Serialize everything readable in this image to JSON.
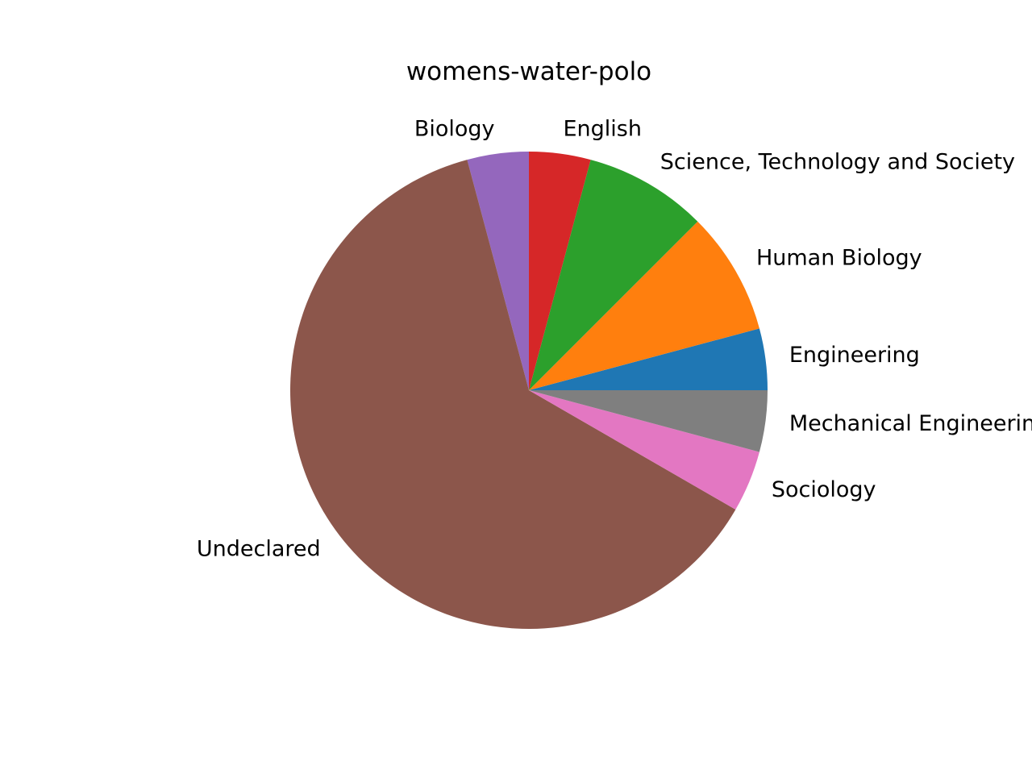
{
  "chart_data": {
    "type": "pie",
    "title": "womens-water-polo",
    "start_angle": 0,
    "direction": "counterclockwise",
    "slices": [
      {
        "label": "Engineering",
        "value": 1,
        "color": "#1f77b4"
      },
      {
        "label": "Human Biology",
        "value": 2,
        "color": "#ff7f0e"
      },
      {
        "label": "Science, Technology and Society",
        "value": 2,
        "color": "#2ca02c"
      },
      {
        "label": "English",
        "value": 1,
        "color": "#d62728"
      },
      {
        "label": "Biology",
        "value": 1,
        "color": "#9467bd"
      },
      {
        "label": "Undeclared",
        "value": 15,
        "color": "#8c564b"
      },
      {
        "label": "Sociology",
        "value": 1,
        "color": "#e377c2"
      },
      {
        "label": "Mechanical Engineering",
        "value": 1,
        "color": "#7f7f7f"
      }
    ]
  }
}
